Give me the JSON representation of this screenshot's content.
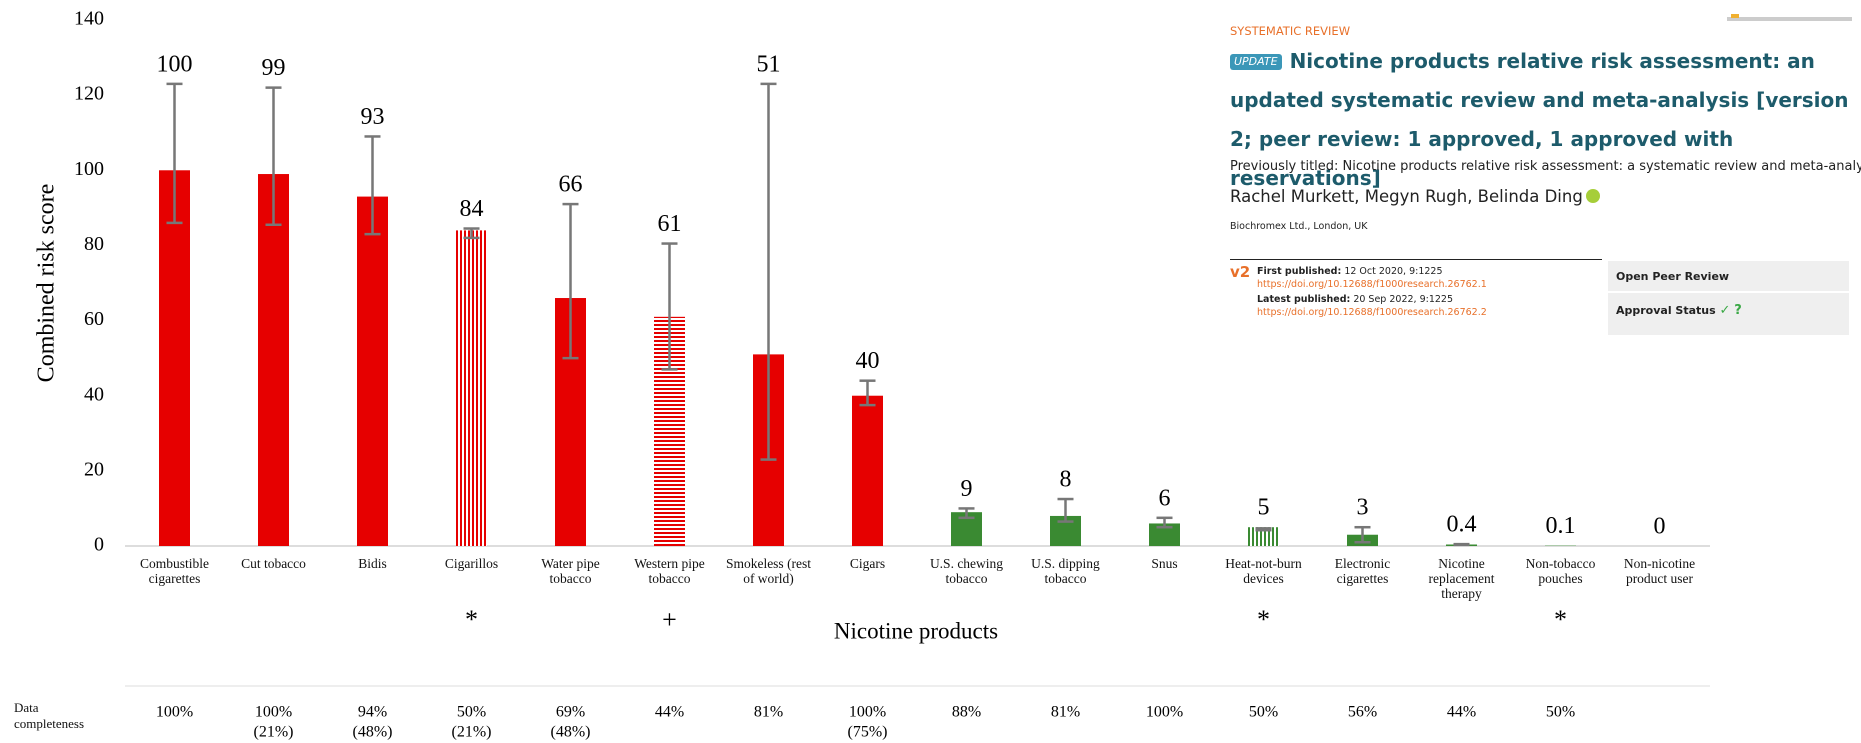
{
  "header": {
    "article_type": "SYSTEMATIC REVIEW",
    "badge": "UPDATE",
    "title": "Nicotine products relative risk assessment: an updated systematic review and meta-analysis",
    "version_note": "[version 2; peer review: 1 approved, 1 approved with reservations]",
    "previous_title": "Previously titled: Nicotine products relative risk assessment: a systematic review and meta-analysis",
    "authors": "Rachel Murkett, Megyn Rugh, Belinda Ding",
    "affiliation": "Biochromex Ltd., London, UK",
    "version": "v2",
    "first_published_label": "First published:",
    "first_published": "12 Oct 2020, 9:1225",
    "first_doi": "https://doi.org/10.12688/f1000research.26762.1",
    "latest_published_label": "Latest published:",
    "latest_published": "20 Sep 2022, 9:1225",
    "latest_doi": "https://doi.org/10.12688/f1000research.26762.2",
    "peer_review": {
      "title": "Open Peer Review",
      "approval_label": "Approval Status",
      "approved": "✓",
      "reservations": "?"
    }
  },
  "chart_data": {
    "type": "bar",
    "ylabel": "Combined risk score",
    "xlabel": "Nicotine products",
    "categories": [
      "Combustible cigarettes",
      "Cut tobacco",
      "Bidis",
      "Cigarillos",
      "Water pipe tobacco",
      "Western pipe tobacco",
      "Smokeless (rest of world)",
      "Cigars",
      "U.S. chewing tobacco",
      "U.S. dipping tobacco",
      "Snus",
      "Heat-not-burn devices",
      "Electronic cigarettes",
      "Nicotine replacement therapy",
      "Non-tobacco pouches",
      "Non-nicotine product user"
    ],
    "values": [
      100,
      99,
      93,
      84,
      66,
      61,
      51,
      40,
      9,
      8,
      6,
      5,
      3,
      0.4,
      0.1,
      0
    ],
    "error_high": [
      123,
      122,
      109,
      84.5,
      91,
      80.5,
      123,
      44,
      10,
      12.5,
      7.5,
      4.7,
      5,
      0.5,
      null,
      null
    ],
    "error_low": [
      86,
      85.5,
      83,
      82,
      50,
      47,
      23,
      37.5,
      7.5,
      6.5,
      5,
      4.2,
      1,
      0.3,
      null,
      null
    ],
    "colors": [
      "#e60000",
      "#e60000",
      "#e60000",
      "#e60000",
      "#e60000",
      "#e60000",
      "#e60000",
      "#e60000",
      "#3a8a32",
      "#3a8a32",
      "#3a8a32",
      "#3a8a32",
      "#3a8a32",
      "#3a8a32",
      "#3a8a32",
      "#3a8a32"
    ],
    "patterns": [
      "solid",
      "solid",
      "solid",
      "vertical",
      "solid",
      "horizontal",
      "solid",
      "solid",
      "solid",
      "solid",
      "solid",
      "vertical",
      "solid",
      "solid",
      "solid",
      "solid"
    ],
    "markers": [
      null,
      null,
      null,
      "*",
      null,
      "+",
      null,
      null,
      null,
      null,
      null,
      "*",
      null,
      null,
      "*",
      null
    ],
    "ylim": [
      0,
      140
    ],
    "yticks": [
      0,
      20,
      40,
      60,
      80,
      100,
      120,
      140
    ],
    "completeness_label": "Data completeness",
    "completeness": [
      [
        "100%"
      ],
      [
        "100%",
        "(21%)"
      ],
      [
        "94%",
        "(48%)"
      ],
      [
        "50%",
        "(21%)"
      ],
      [
        "69%",
        "(48%)"
      ],
      [
        "44%"
      ],
      [
        "81%"
      ],
      [
        "100%",
        "(75%)"
      ],
      [
        "88%"
      ],
      [
        "81%"
      ],
      [
        "100%"
      ],
      [
        "50%"
      ],
      [
        "56%"
      ],
      [
        "44%"
      ],
      [
        "50%"
      ],
      null
    ]
  }
}
